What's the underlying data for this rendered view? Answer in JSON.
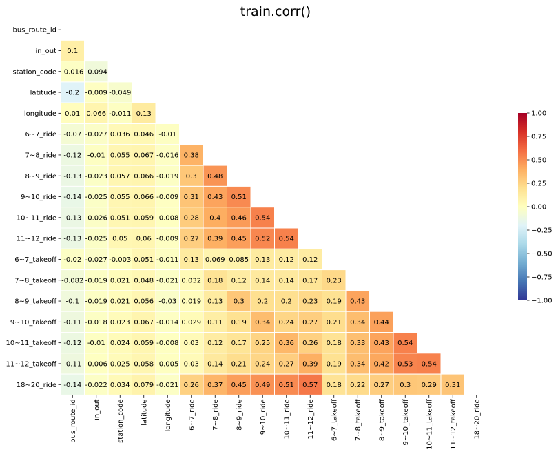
{
  "chart_data": {
    "type": "heatmap",
    "title": "train.corr()",
    "variables": [
      "bus_route_id",
      "in_out",
      "station_code",
      "latitude",
      "longitude",
      "6~7_ride",
      "7~8_ride",
      "8~9_ride",
      "9~10_ride",
      "10~11_ride",
      "11~12_ride",
      "6~7_takeoff",
      "7~8_takeoff",
      "8~9_takeoff",
      "9~10_takeoff",
      "10~11_takeoff",
      "11~12_takeoff",
      "18~20_ride"
    ],
    "mask": "upper-triangle-and-diagonal",
    "lower_triangle": [
      [],
      [
        "0.1"
      ],
      [
        "-0.016",
        "-0.094"
      ],
      [
        "-0.2",
        "-0.009",
        "-0.049"
      ],
      [
        "0.01",
        "0.066",
        "-0.011",
        "0.13"
      ],
      [
        "-0.07",
        "-0.027",
        "0.036",
        "0.046",
        "-0.01"
      ],
      [
        "-0.12",
        "-0.01",
        "0.055",
        "0.067",
        "-0.016",
        "0.38"
      ],
      [
        "-0.13",
        "-0.023",
        "0.057",
        "0.066",
        "-0.019",
        "0.3",
        "0.48"
      ],
      [
        "-0.14",
        "-0.025",
        "0.055",
        "0.066",
        "-0.009",
        "0.31",
        "0.43",
        "0.51"
      ],
      [
        "-0.13",
        "-0.026",
        "0.051",
        "0.059",
        "-0.008",
        "0.28",
        "0.4",
        "0.46",
        "0.54"
      ],
      [
        "-0.13",
        "-0.025",
        "0.05",
        "0.06",
        "-0.009",
        "0.27",
        "0.39",
        "0.45",
        "0.52",
        "0.54"
      ],
      [
        "-0.02",
        "-0.027",
        "-0.003",
        "0.051",
        "-0.011",
        "0.13",
        "0.069",
        "0.085",
        "0.13",
        "0.12",
        "0.12"
      ],
      [
        "-0.082",
        "-0.019",
        "0.021",
        "0.048",
        "-0.021",
        "0.032",
        "0.18",
        "0.12",
        "0.14",
        "0.14",
        "0.17",
        "0.23"
      ],
      [
        "-0.1",
        "-0.019",
        "0.021",
        "0.056",
        "-0.03",
        "0.019",
        "0.13",
        "0.3",
        "0.2",
        "0.2",
        "0.23",
        "0.19",
        "0.43"
      ],
      [
        "-0.11",
        "-0.018",
        "0.023",
        "0.067",
        "-0.014",
        "0.029",
        "0.11",
        "0.19",
        "0.34",
        "0.24",
        "0.27",
        "0.21",
        "0.34",
        "0.44"
      ],
      [
        "-0.12",
        "-0.01",
        "0.024",
        "0.059",
        "-0.008",
        "0.03",
        "0.12",
        "0.17",
        "0.25",
        "0.36",
        "0.26",
        "0.18",
        "0.33",
        "0.43",
        "0.54"
      ],
      [
        "-0.11",
        "-0.006",
        "0.025",
        "0.058",
        "-0.005",
        "0.03",
        "0.14",
        "0.21",
        "0.24",
        "0.27",
        "0.39",
        "0.19",
        "0.34",
        "0.42",
        "0.53",
        "0.54"
      ],
      [
        "-0.14",
        "-0.022",
        "0.034",
        "0.079",
        "-0.021",
        "0.26",
        "0.37",
        "0.45",
        "0.49",
        "0.51",
        "0.57",
        "0.18",
        "0.22",
        "0.27",
        "0.3",
        "0.29",
        "0.31"
      ]
    ],
    "colorbar": {
      "vmin": -1.0,
      "vmax": 1.0,
      "ticks": [
        "1.00",
        "0.75",
        "0.50",
        "0.25",
        "0.00",
        "−0.25",
        "−0.50",
        "−0.75",
        "−1.00"
      ],
      "colormap": "RdYlBu_r"
    },
    "cell_border_color": "#ffffff"
  }
}
